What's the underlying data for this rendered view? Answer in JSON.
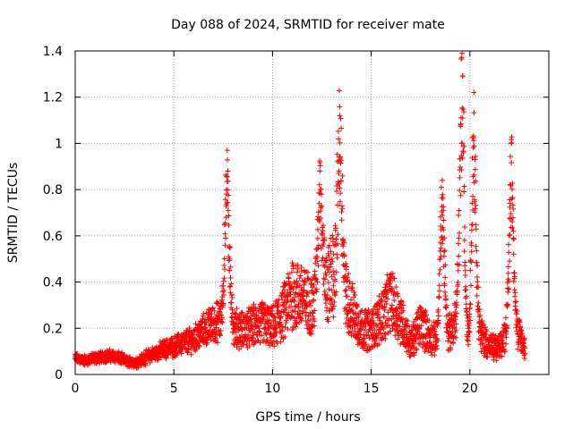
{
  "chart_data": {
    "type": "scatter",
    "title": "Day 088 of 2024, SRMTID for receiver mate",
    "xlabel": "GPS time / hours",
    "ylabel": "SRMTID / TECUs",
    "xlim": [
      0,
      24
    ],
    "ylim": [
      0,
      1.4
    ],
    "x_ticks": [
      0,
      5,
      10,
      15,
      20
    ],
    "x_tick_labels": [
      "0",
      "5",
      "10",
      "15",
      "20"
    ],
    "y_ticks": [
      0,
      0.2,
      0.4,
      0.6,
      0.8,
      1.0,
      1.2,
      1.4
    ],
    "y_tick_labels": [
      "0",
      "0.2",
      "0.4",
      "0.6",
      "0.8",
      "1",
      "1.2",
      "1.4"
    ],
    "grid": true,
    "marker": "+",
    "color": "#ff0000",
    "baseline": [
      [
        0,
        0.07
      ],
      [
        0.5,
        0.06
      ],
      [
        1,
        0.07
      ],
      [
        1.5,
        0.08
      ],
      [
        2,
        0.08
      ],
      [
        2.5,
        0.06
      ],
      [
        3,
        0.05
      ],
      [
        3.5,
        0.07
      ],
      [
        4,
        0.09
      ],
      [
        4.5,
        0.11
      ],
      [
        5,
        0.12
      ],
      [
        5.5,
        0.14
      ],
      [
        6,
        0.15
      ],
      [
        6.5,
        0.19
      ],
      [
        7,
        0.22
      ],
      [
        7.5,
        0.24
      ],
      [
        8,
        0.21
      ],
      [
        8.5,
        0.19
      ],
      [
        9,
        0.21
      ],
      [
        9.5,
        0.22
      ],
      [
        10,
        0.2
      ],
      [
        10.5,
        0.26
      ],
      [
        11,
        0.35
      ],
      [
        11.5,
        0.33
      ],
      [
        12,
        0.3
      ],
      [
        12.5,
        0.35
      ],
      [
        13,
        0.42
      ],
      [
        13.5,
        0.4
      ],
      [
        14,
        0.28
      ],
      [
        14.5,
        0.2
      ],
      [
        15,
        0.19
      ],
      [
        15.5,
        0.25
      ],
      [
        16,
        0.32
      ],
      [
        16.5,
        0.24
      ],
      [
        17,
        0.13
      ],
      [
        17.5,
        0.22
      ],
      [
        18,
        0.16
      ],
      [
        18.5,
        0.14
      ],
      [
        19,
        0.18
      ],
      [
        19.5,
        0.3
      ],
      [
        20,
        0.1
      ],
      [
        20.5,
        0.18
      ],
      [
        21,
        0.12
      ],
      [
        21.5,
        0.11
      ],
      [
        22,
        0.2
      ],
      [
        22.5,
        0.17
      ],
      [
        22.8,
        0.11
      ]
    ],
    "peaks": [
      {
        "x": 7.7,
        "y": 0.97
      },
      {
        "x": 12.4,
        "y": 0.88
      },
      {
        "x": 13.4,
        "y": 1.12
      },
      {
        "x": 18.6,
        "y": 0.84
      },
      {
        "x": 19.6,
        "y": 1.39
      },
      {
        "x": 20.2,
        "y": 1.22
      },
      {
        "x": 22.1,
        "y": 1.0
      }
    ],
    "x_end": 22.8
  }
}
